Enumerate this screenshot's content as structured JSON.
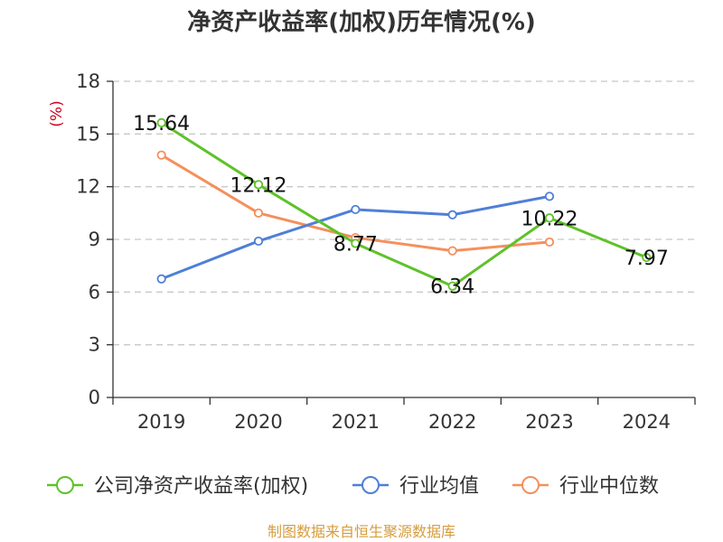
{
  "colors": {
    "series": [
      "#5ec229",
      "#4f7fd8",
      "#f4905c"
    ],
    "axis": "#333333",
    "grid": "#c8c8c8",
    "unit": "#d0021b",
    "source": "#d59d3c"
  },
  "chart_data": {
    "type": "line",
    "title": "净资产收益率(加权)历年情况(%)",
    "ylabel": "(%)",
    "categories": [
      "2019",
      "2020",
      "2021",
      "2022",
      "2023",
      "2024"
    ],
    "ylim": [
      0,
      18
    ],
    "yticks": [
      0,
      3,
      6,
      9,
      12,
      15,
      18
    ],
    "grid": "horizontal dashed",
    "legend_position": "bottom",
    "series": [
      {
        "name": "公司净资产收益率(加权)",
        "values": [
          15.64,
          12.12,
          8.77,
          6.34,
          10.22,
          7.97
        ],
        "data_labels": [
          "15.64",
          "12.12",
          "8.77",
          "6.34",
          "10.22",
          "7.97"
        ]
      },
      {
        "name": "行业均值",
        "values": [
          6.75,
          8.9,
          10.7,
          10.4,
          11.45,
          null
        ]
      },
      {
        "name": "行业中位数",
        "values": [
          13.8,
          10.5,
          9.1,
          8.35,
          8.85,
          null
        ]
      }
    ]
  },
  "source_text": "制图数据来自恒生聚源数据库"
}
